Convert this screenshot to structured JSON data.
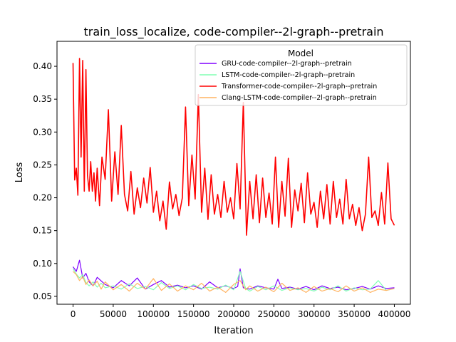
{
  "chart_data": {
    "type": "line",
    "title": "train_loss_localize, code-compiler--2l-graph--pretrain",
    "xlabel": "Iteration",
    "ylabel": "Loss",
    "xlim": [
      -20000,
      420000
    ],
    "ylim": [
      0.038,
      0.438
    ],
    "xticks": [
      {
        "value": 0,
        "label": "0"
      },
      {
        "value": 50000,
        "label": "50000"
      },
      {
        "value": 100000,
        "label": "100000"
      },
      {
        "value": 150000,
        "label": "150000"
      },
      {
        "value": 200000,
        "label": "200000"
      },
      {
        "value": 250000,
        "label": "250000"
      },
      {
        "value": 300000,
        "label": "300000"
      },
      {
        "value": 350000,
        "label": "350000"
      },
      {
        "value": 400000,
        "label": "400000"
      }
    ],
    "yticks": [
      {
        "value": 0.05,
        "label": "0.05"
      },
      {
        "value": 0.1,
        "label": "0.10"
      },
      {
        "value": 0.15,
        "label": "0.15"
      },
      {
        "value": 0.2,
        "label": "0.20"
      },
      {
        "value": 0.25,
        "label": "0.25"
      },
      {
        "value": 0.3,
        "label": "0.30"
      },
      {
        "value": 0.35,
        "label": "0.35"
      },
      {
        "value": 0.4,
        "label": "0.40"
      }
    ],
    "grid": false,
    "legend": {
      "title": "Model",
      "placement": "top-right"
    },
    "series": [
      {
        "name": "GRU-code-compiler--2l-graph--pretrain",
        "color": "#8000ff",
        "x": [
          0,
          4000,
          8000,
          12000,
          16000,
          20000,
          25000,
          30000,
          40000,
          50000,
          60000,
          70000,
          80000,
          90000,
          100000,
          110000,
          120000,
          130000,
          140000,
          150000,
          160000,
          170000,
          180000,
          190000,
          200000,
          205000,
          208000,
          212000,
          220000,
          230000,
          240000,
          250000,
          255000,
          260000,
          270000,
          280000,
          290000,
          300000,
          310000,
          320000,
          330000,
          340000,
          350000,
          360000,
          370000,
          380000,
          390000,
          400000
        ],
        "values": [
          0.095,
          0.088,
          0.105,
          0.078,
          0.085,
          0.072,
          0.066,
          0.079,
          0.068,
          0.063,
          0.074,
          0.066,
          0.078,
          0.061,
          0.068,
          0.074,
          0.064,
          0.067,
          0.063,
          0.066,
          0.061,
          0.072,
          0.063,
          0.066,
          0.062,
          0.065,
          0.092,
          0.063,
          0.061,
          0.066,
          0.063,
          0.061,
          0.076,
          0.062,
          0.064,
          0.061,
          0.065,
          0.06,
          0.066,
          0.062,
          0.064,
          0.06,
          0.062,
          0.065,
          0.061,
          0.066,
          0.062,
          0.063
        ]
      },
      {
        "name": "LSTM-code-compiler--2l-graph--pretrain",
        "color": "#80ffb4",
        "x": [
          0,
          4000,
          8000,
          12000,
          16000,
          20000,
          25000,
          30000,
          35000,
          40000,
          50000,
          60000,
          70000,
          80000,
          90000,
          100000,
          110000,
          120000,
          130000,
          140000,
          150000,
          160000,
          170000,
          180000,
          190000,
          200000,
          208000,
          215000,
          220000,
          230000,
          240000,
          250000,
          260000,
          270000,
          280000,
          290000,
          300000,
          310000,
          320000,
          330000,
          340000,
          350000,
          360000,
          370000,
          380000,
          390000,
          400000
        ],
        "values": [
          0.092,
          0.084,
          0.078,
          0.083,
          0.071,
          0.066,
          0.072,
          0.064,
          0.07,
          0.063,
          0.066,
          0.061,
          0.069,
          0.062,
          0.065,
          0.06,
          0.071,
          0.062,
          0.066,
          0.06,
          0.068,
          0.062,
          0.064,
          0.061,
          0.067,
          0.06,
          0.088,
          0.062,
          0.058,
          0.065,
          0.06,
          0.066,
          0.059,
          0.063,
          0.06,
          0.062,
          0.058,
          0.064,
          0.06,
          0.066,
          0.058,
          0.063,
          0.06,
          0.061,
          0.074,
          0.059,
          0.062
        ]
      },
      {
        "name": "Transformer-code-compiler--2l-graph--pretrain",
        "color": "#ff0000",
        "x": [
          0,
          2000,
          4000,
          6000,
          8000,
          10000,
          12000,
          14000,
          16000,
          18000,
          20000,
          22000,
          24000,
          26000,
          28000,
          30000,
          33000,
          36000,
          40000,
          44000,
          48000,
          52000,
          56000,
          60000,
          64000,
          68000,
          72000,
          76000,
          80000,
          84000,
          88000,
          92000,
          96000,
          100000,
          104000,
          108000,
          112000,
          116000,
          120000,
          124000,
          128000,
          132000,
          136000,
          140000,
          144000,
          148000,
          152000,
          156000,
          160000,
          164000,
          168000,
          172000,
          176000,
          180000,
          184000,
          188000,
          192000,
          196000,
          200000,
          204000,
          208000,
          212000,
          216000,
          220000,
          224000,
          228000,
          232000,
          236000,
          240000,
          244000,
          248000,
          252000,
          256000,
          260000,
          264000,
          268000,
          272000,
          276000,
          280000,
          284000,
          288000,
          292000,
          296000,
          300000,
          304000,
          308000,
          312000,
          316000,
          320000,
          324000,
          328000,
          332000,
          336000,
          340000,
          344000,
          348000,
          352000,
          356000,
          360000,
          364000,
          368000,
          372000,
          376000,
          380000,
          384000,
          388000,
          392000,
          396000,
          400000
        ],
        "values": [
          0.405,
          0.227,
          0.245,
          0.204,
          0.412,
          0.262,
          0.409,
          0.21,
          0.395,
          0.234,
          0.21,
          0.255,
          0.21,
          0.238,
          0.195,
          0.245,
          0.188,
          0.262,
          0.228,
          0.334,
          0.195,
          0.27,
          0.205,
          0.31,
          0.205,
          0.18,
          0.24,
          0.175,
          0.215,
          0.185,
          0.23,
          0.192,
          0.246,
          0.178,
          0.21,
          0.165,
          0.195,
          0.152,
          0.224,
          0.183,
          0.205,
          0.173,
          0.2,
          0.338,
          0.188,
          0.265,
          0.198,
          0.357,
          0.178,
          0.245,
          0.167,
          0.235,
          0.175,
          0.205,
          0.17,
          0.225,
          0.178,
          0.2,
          0.168,
          0.252,
          0.183,
          0.345,
          0.143,
          0.225,
          0.168,
          0.235,
          0.162,
          0.23,
          0.17,
          0.207,
          0.16,
          0.262,
          0.155,
          0.225,
          0.172,
          0.26,
          0.155,
          0.212,
          0.18,
          0.222,
          0.162,
          0.238,
          0.175,
          0.193,
          0.155,
          0.21,
          0.168,
          0.22,
          0.16,
          0.225,
          0.17,
          0.198,
          0.16,
          0.228,
          0.168,
          0.19,
          0.158,
          0.185,
          0.15,
          0.175,
          0.262,
          0.17,
          0.18,
          0.158,
          0.208,
          0.16,
          0.253,
          0.168,
          0.158
        ]
      },
      {
        "name": "Clang-LSTM-code-compiler--2l-graph--pretrain",
        "color": "#ffb360",
        "x": [
          0,
          4000,
          8000,
          12000,
          16000,
          20000,
          25000,
          30000,
          35000,
          40000,
          50000,
          60000,
          70000,
          80000,
          90000,
          100000,
          110000,
          120000,
          130000,
          140000,
          150000,
          160000,
          170000,
          180000,
          190000,
          200000,
          208000,
          215000,
          220000,
          230000,
          240000,
          250000,
          260000,
          270000,
          280000,
          290000,
          300000,
          310000,
          320000,
          330000,
          340000,
          350000,
          360000,
          370000,
          380000,
          390000,
          400000
        ],
        "values": [
          0.088,
          0.083,
          0.074,
          0.08,
          0.068,
          0.075,
          0.066,
          0.073,
          0.061,
          0.072,
          0.06,
          0.068,
          0.058,
          0.07,
          0.061,
          0.077,
          0.059,
          0.069,
          0.058,
          0.066,
          0.06,
          0.07,
          0.058,
          0.064,
          0.056,
          0.068,
          0.074,
          0.06,
          0.066,
          0.058,
          0.064,
          0.057,
          0.07,
          0.059,
          0.063,
          0.056,
          0.065,
          0.058,
          0.062,
          0.057,
          0.066,
          0.058,
          0.063,
          0.056,
          0.061,
          0.059,
          0.062
        ]
      }
    ]
  }
}
